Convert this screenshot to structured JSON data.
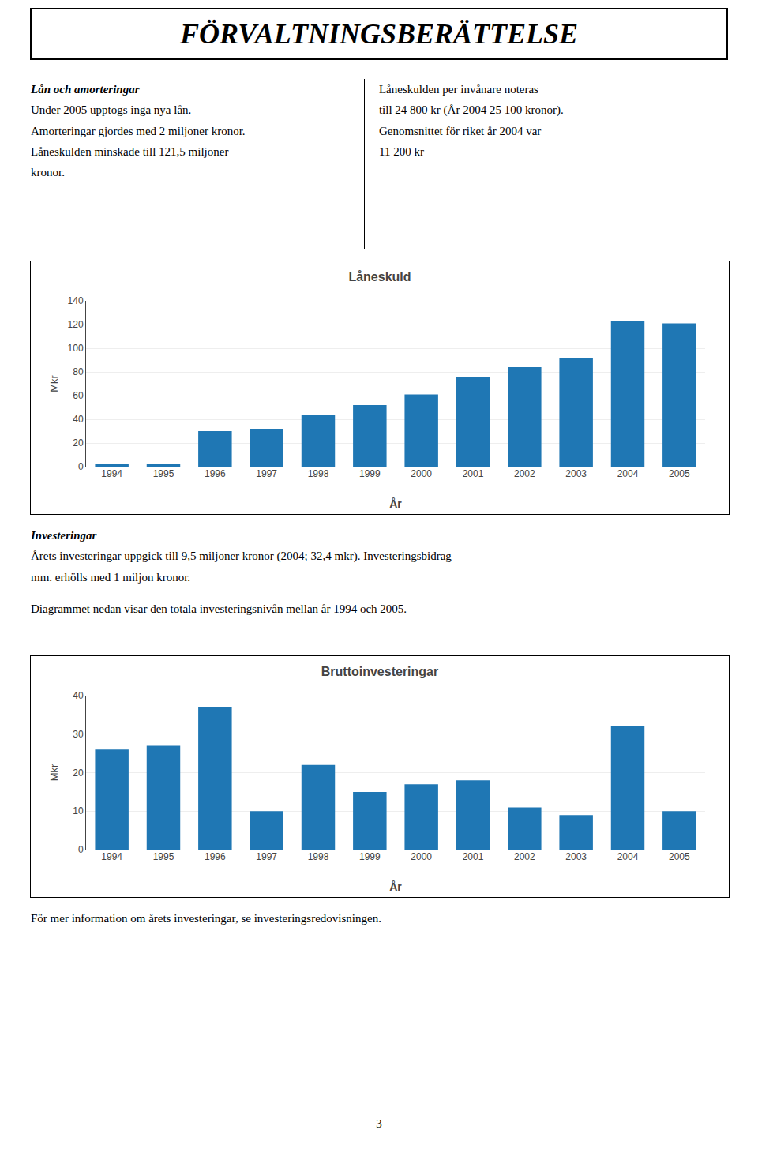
{
  "title": "FÖRVALTNINGSBERÄTTELSE",
  "annotations": [
    "Lån och amorteringar",
    "Under 2005 upptogs inga nya lån.",
    "Amorteringar gjordes med 2 miljoner kronor.",
    "Låneskulden minskade till 121,5 miljoner",
    "kronor.",
    "Låneskulden per invånare noteras",
    "till 24 800 kr (År 2004 25 100 kronor).",
    "Genomsnittet för riket år 2004 var",
    "11 200 kr",
    "Investeringar",
    "Årets investeringar uppgick till 9,5 miljoner kronor (2004; 32,4 mkr). Investeringsbidrag",
    "mm. erhölls med 1 miljon kronor.",
    "Diagrammet nedan visar den totala investeringsnivån mellan år 1994 och 2005.",
    "För mer information om årets investeringar, se investeringsredovisningen.",
    "3"
  ],
  "chart_data": [
    {
      "type": "bar",
      "title": "Låneskuld",
      "xlabel": "År",
      "ylabel": "Mkr",
      "categories": [
        "1994",
        "1995",
        "1996",
        "1997",
        "1998",
        "1999",
        "2000",
        "2001",
        "2002",
        "2003",
        "2004",
        "2005"
      ],
      "values": [
        2,
        2,
        30,
        32,
        44,
        52,
        61,
        76,
        84,
        92,
        123,
        121
      ],
      "ylim": [
        0,
        140
      ],
      "yticks": [
        0,
        20,
        40,
        60,
        80,
        100,
        120,
        140
      ],
      "grid": true
    },
    {
      "type": "bar",
      "title": "Bruttoinvesteringar",
      "xlabel": "År",
      "ylabel": "Mkr",
      "categories": [
        "1994",
        "1995",
        "1996",
        "1997",
        "1998",
        "1999",
        "2000",
        "2001",
        "2002",
        "2003",
        "2004",
        "2005"
      ],
      "values": [
        26,
        27,
        37,
        10,
        22,
        15,
        17,
        18,
        11,
        9,
        32,
        10
      ],
      "ylim": [
        0,
        40
      ],
      "yticks": [
        0,
        10,
        20,
        30,
        40
      ],
      "grid": true
    }
  ]
}
